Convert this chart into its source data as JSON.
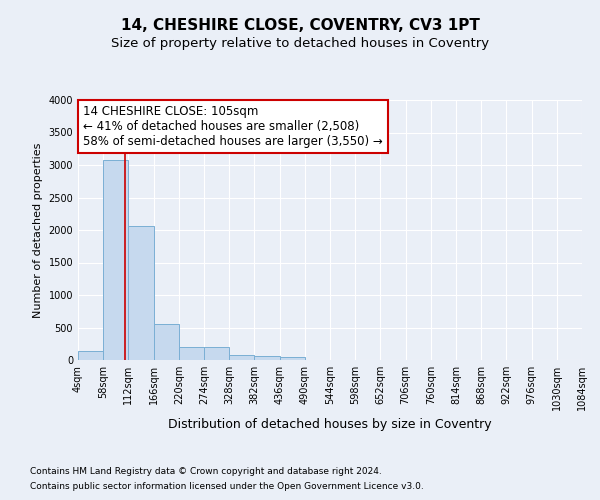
{
  "title": "14, CHESHIRE CLOSE, COVENTRY, CV3 1PT",
  "subtitle": "Size of property relative to detached houses in Coventry",
  "xlabel": "Distribution of detached houses by size in Coventry",
  "ylabel": "Number of detached properties",
  "bar_color": "#c6d9ee",
  "bar_edge_color": "#7aafd4",
  "bin_edges": [
    4,
    58,
    112,
    166,
    220,
    274,
    328,
    382,
    436,
    490,
    544,
    598,
    652,
    706,
    760,
    814,
    868,
    922,
    976,
    1030,
    1084
  ],
  "bar_heights": [
    140,
    3070,
    2060,
    555,
    200,
    195,
    80,
    60,
    50,
    0,
    0,
    0,
    0,
    0,
    0,
    0,
    0,
    0,
    0,
    0
  ],
  "property_size": 105,
  "red_line_color": "#cc0000",
  "annotation_line1": "14 CHESHIRE CLOSE: 105sqm",
  "annotation_line2": "← 41% of detached houses are smaller (2,508)",
  "annotation_line3": "58% of semi-detached houses are larger (3,550) →",
  "annotation_box_color": "#ffffff",
  "annotation_box_edge": "#cc0000",
  "ylim": [
    0,
    4000
  ],
  "yticks": [
    0,
    500,
    1000,
    1500,
    2000,
    2500,
    3000,
    3500,
    4000
  ],
  "footnote1": "Contains HM Land Registry data © Crown copyright and database right 2024.",
  "footnote2": "Contains public sector information licensed under the Open Government Licence v3.0.",
  "background_color": "#eaeff7",
  "plot_bg_color": "#eaeff7",
  "grid_color": "#ffffff",
  "title_fontsize": 11,
  "subtitle_fontsize": 9.5,
  "xlabel_fontsize": 9,
  "ylabel_fontsize": 8,
  "tick_fontsize": 7,
  "annotation_fontsize": 8.5,
  "footnote_fontsize": 6.5
}
